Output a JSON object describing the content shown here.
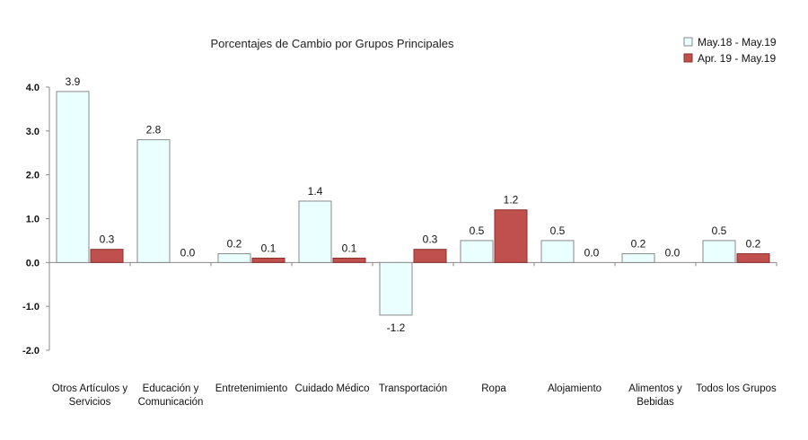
{
  "chart_data": {
    "type": "bar",
    "title": "Porcentajes de Cambio por Grupos Principales",
    "categories": [
      [
        "Otros Artículos y",
        "Servicios"
      ],
      [
        "Educación y",
        "Comunicación"
      ],
      [
        "Entretenimiento"
      ],
      [
        "Cuidado Médico"
      ],
      [
        "Transportación"
      ],
      [
        "Ropa"
      ],
      [
        "Alojamiento"
      ],
      [
        "Alimentos y",
        "Bebidas"
      ],
      [
        "Todos los Grupos"
      ]
    ],
    "series": [
      {
        "name": "May.18 - May.19",
        "color": "#eaffff",
        "stroke": "#8a8a8a",
        "values": [
          3.9,
          2.8,
          0.2,
          1.4,
          -1.2,
          0.5,
          0.5,
          0.2,
          0.5
        ],
        "labels": [
          "3.9",
          "2.8",
          "0.2",
          "1.4",
          "-1.2",
          "0.5",
          "0.5",
          "0.2",
          "0.5"
        ]
      },
      {
        "name": "Apr. 19 -  May.19",
        "color": "#c0504d",
        "stroke": "#8c2f2c",
        "values": [
          0.3,
          0.0,
          0.1,
          0.1,
          0.3,
          1.2,
          0.0,
          0.0,
          0.2
        ],
        "labels": [
          "0.3",
          "0.0",
          "0.1",
          "0.1",
          "0.3",
          "1.2",
          "0.0",
          "0.0",
          "0.2"
        ]
      }
    ],
    "ylim": [
      -2.0,
      4.0
    ],
    "yticks": [
      -2.0,
      -1.0,
      0.0,
      1.0,
      2.0,
      3.0,
      4.0
    ],
    "ytick_labels": [
      "-2.0",
      "-1.0",
      "0.0",
      "1.0",
      "2.0",
      "3.0",
      "4.0"
    ],
    "xlabel": "",
    "ylabel": "",
    "grid": false,
    "legend_position": "top-right"
  }
}
